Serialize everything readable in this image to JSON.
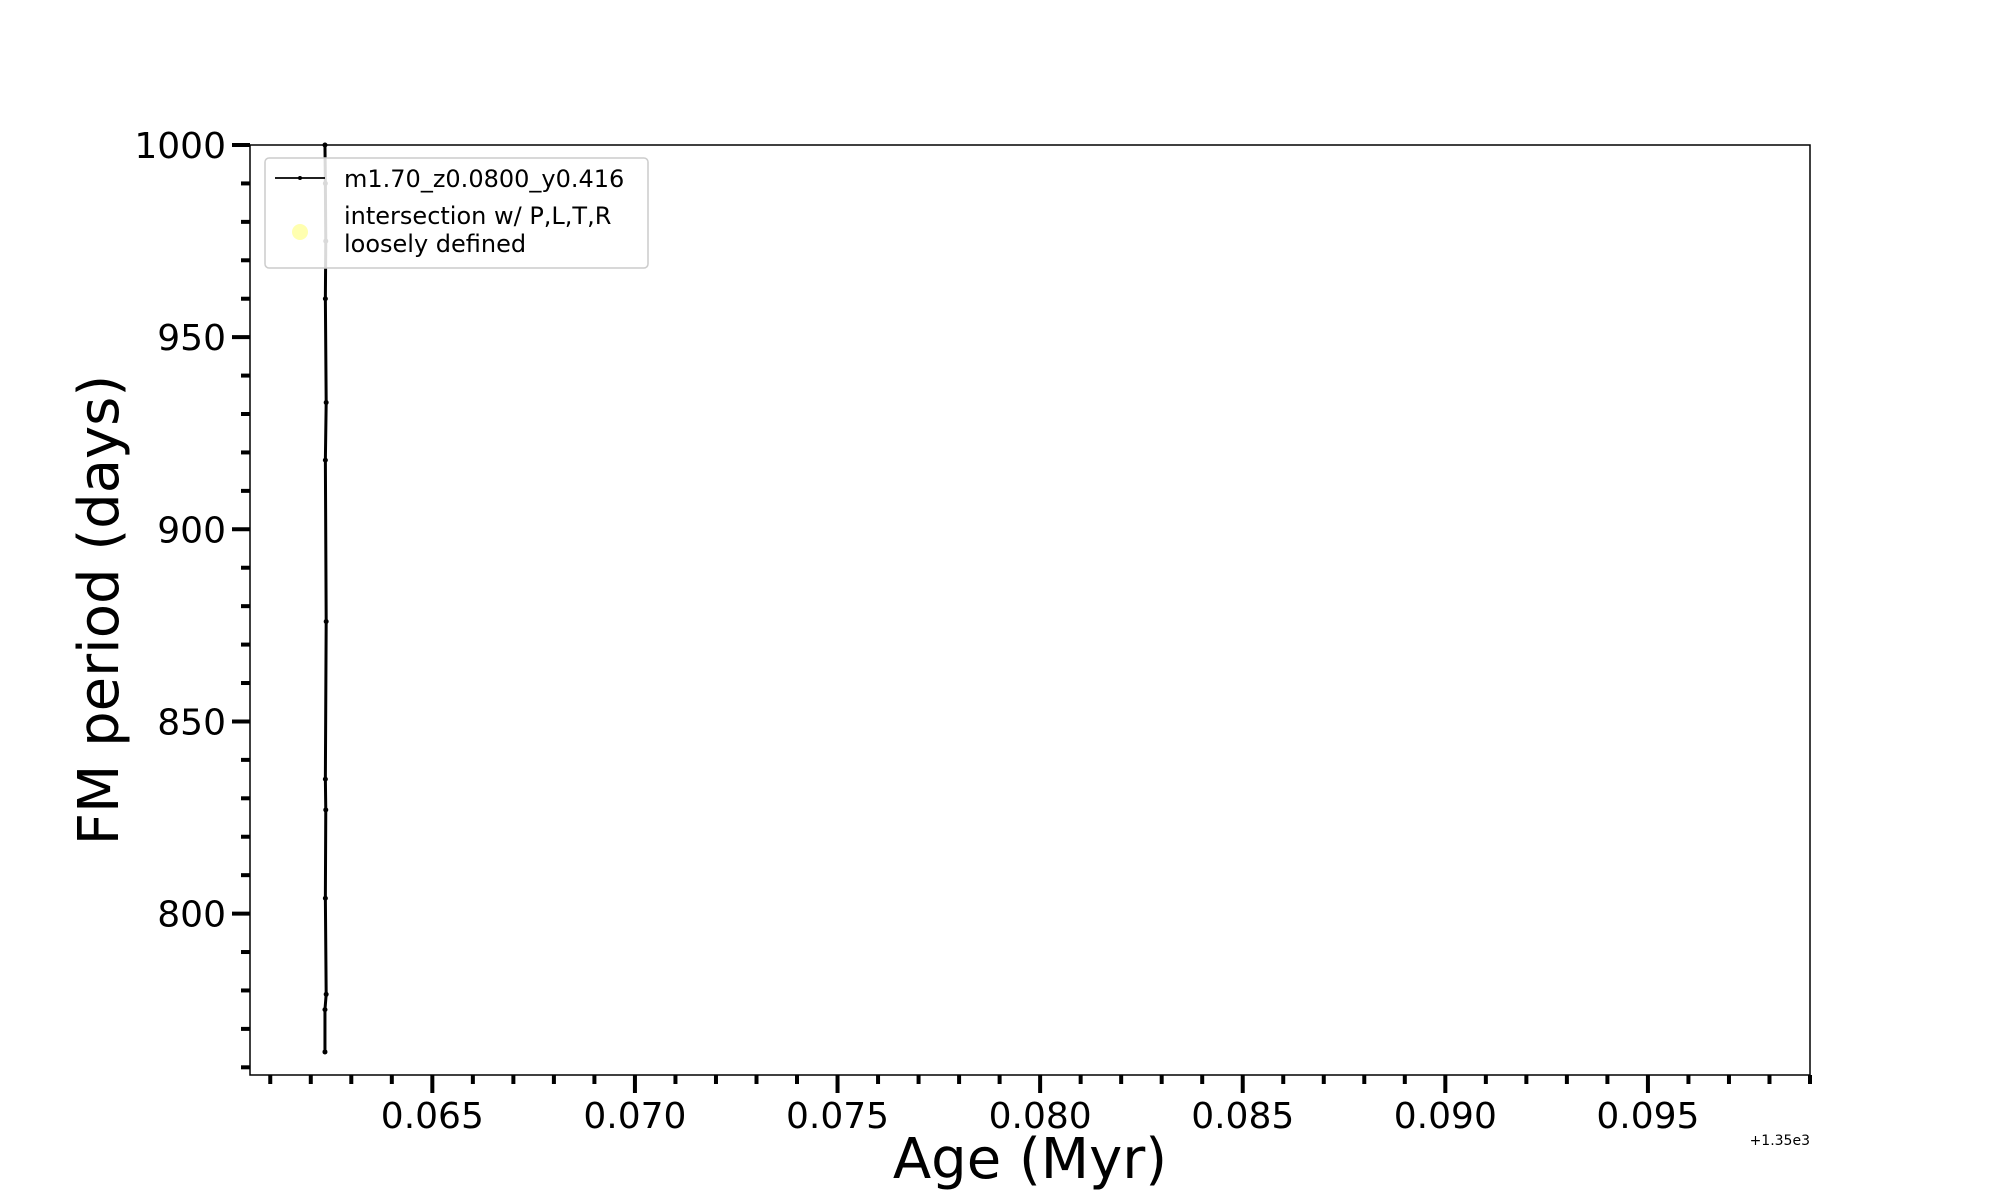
{
  "chart_data": {
    "type": "line",
    "xlabel": "Age (Myr)",
    "ylabel": "FM period (days)",
    "x_offset_label": "+1.35e3",
    "xlim": [
      1350.0605,
      1350.099
    ],
    "ylim": [
      758,
      1000
    ],
    "x_ticks": [
      1350.065,
      1350.07,
      1350.075,
      1350.08,
      1350.085,
      1350.09,
      1350.095
    ],
    "x_tick_labels": [
      "0.065",
      "0.070",
      "0.075",
      "0.080",
      "0.085",
      "0.090",
      "0.095"
    ],
    "y_ticks": [
      800,
      850,
      900,
      950,
      1000
    ],
    "y_tick_labels": [
      "800",
      "850",
      "900",
      "950",
      "1000"
    ],
    "grid": false,
    "legend_position": "upper-left",
    "series": [
      {
        "name": "m1.70_z0.0800_y0.416",
        "color": "#000000",
        "x": [
          1350.06235,
          1350.06235,
          1350.06238,
          1350.06236,
          1350.06237,
          1350.06236,
          1350.06238,
          1350.06236,
          1350.06238,
          1350.06236,
          1350.06237,
          1350.06236,
          1350.06235
        ],
        "y": [
          764,
          775,
          779,
          804,
          827,
          835,
          876,
          918,
          933,
          960,
          975,
          990,
          1000
        ]
      }
    ],
    "annotations": [
      {
        "label": "intersection w/ P,L,T,R\nloosely defined",
        "color": "#ffffb0",
        "marker": "circle"
      }
    ]
  }
}
